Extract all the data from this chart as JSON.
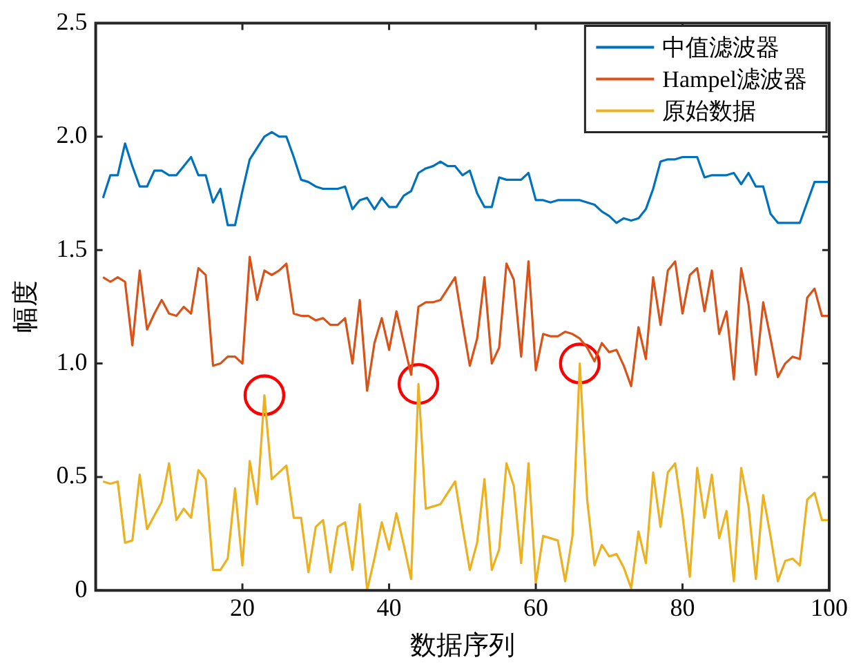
{
  "chart_data": {
    "type": "line",
    "xlabel": "数据序列",
    "ylabel": "幅度",
    "x": [
      1,
      2,
      3,
      4,
      5,
      6,
      7,
      8,
      9,
      10,
      11,
      12,
      13,
      14,
      15,
      16,
      17,
      18,
      19,
      20,
      21,
      22,
      23,
      24,
      25,
      26,
      27,
      28,
      29,
      30,
      31,
      32,
      33,
      34,
      35,
      36,
      37,
      38,
      39,
      40,
      41,
      42,
      43,
      44,
      45,
      46,
      47,
      48,
      49,
      50,
      51,
      52,
      53,
      54,
      55,
      56,
      57,
      58,
      59,
      60,
      61,
      62,
      63,
      64,
      65,
      66,
      67,
      68,
      69,
      70,
      71,
      72,
      73,
      74,
      75,
      76,
      77,
      78,
      79,
      80,
      81,
      82,
      83,
      84,
      85,
      86,
      87,
      88,
      89,
      90,
      91,
      92,
      93,
      94,
      95,
      96,
      97,
      98,
      99,
      100
    ],
    "series": [
      {
        "name": "中值滤波器",
        "color": "#0072bd",
        "values": [
          1.73,
          1.83,
          1.83,
          1.97,
          1.87,
          1.78,
          1.78,
          1.85,
          1.85,
          1.83,
          1.83,
          1.87,
          1.91,
          1.83,
          1.83,
          1.71,
          1.77,
          1.61,
          1.61,
          1.76,
          1.9,
          1.95,
          2.0,
          2.02,
          2.0,
          2.0,
          1.91,
          1.81,
          1.8,
          1.78,
          1.77,
          1.77,
          1.77,
          1.78,
          1.68,
          1.72,
          1.73,
          1.68,
          1.73,
          1.69,
          1.69,
          1.74,
          1.76,
          1.84,
          1.86,
          1.87,
          1.89,
          1.87,
          1.87,
          1.83,
          1.85,
          1.75,
          1.69,
          1.69,
          1.82,
          1.81,
          1.81,
          1.81,
          1.84,
          1.72,
          1.72,
          1.71,
          1.72,
          1.72,
          1.72,
          1.72,
          1.71,
          1.7,
          1.67,
          1.65,
          1.62,
          1.64,
          1.63,
          1.64,
          1.68,
          1.77,
          1.89,
          1.9,
          1.9,
          1.91,
          1.91,
          1.91,
          1.82,
          1.83,
          1.83,
          1.83,
          1.84,
          1.79,
          1.84,
          1.78,
          1.78,
          1.66,
          1.62,
          1.62,
          1.62,
          1.62,
          1.71,
          1.8,
          1.8,
          1.8
        ]
      },
      {
        "name": "Hampel滤波器",
        "color": "#d95319",
        "values": [
          1.38,
          1.36,
          1.38,
          1.36,
          1.08,
          1.41,
          1.15,
          1.22,
          1.28,
          1.22,
          1.21,
          1.25,
          1.22,
          1.42,
          1.39,
          0.99,
          1.0,
          1.03,
          1.03,
          1.0,
          1.47,
          1.28,
          1.41,
          1.39,
          1.41,
          1.44,
          1.22,
          1.21,
          1.21,
          1.19,
          1.2,
          1.17,
          1.17,
          1.2,
          1.0,
          1.28,
          0.88,
          1.09,
          1.2,
          1.06,
          1.23,
          1.09,
          0.95,
          1.25,
          1.27,
          1.27,
          1.28,
          1.33,
          1.38,
          1.18,
          0.99,
          1.11,
          1.38,
          1.0,
          1.07,
          1.44,
          1.37,
          1.03,
          1.45,
          0.97,
          1.13,
          1.12,
          1.12,
          1.14,
          1.13,
          1.11,
          1.07,
          1.01,
          1.09,
          1.05,
          1.06,
          0.99,
          0.9,
          1.16,
          1.02,
          1.38,
          1.17,
          1.41,
          1.45,
          1.22,
          1.39,
          1.42,
          1.23,
          1.41,
          1.13,
          1.23,
          0.93,
          1.42,
          1.26,
          0.95,
          1.27,
          1.11,
          0.94,
          1.0,
          1.03,
          1.02,
          1.29,
          1.33,
          1.21,
          1.21
        ]
      },
      {
        "name": "原始数据",
        "color": "#edb120",
        "values": [
          0.48,
          0.47,
          0.48,
          0.21,
          0.22,
          0.51,
          0.27,
          0.33,
          0.39,
          0.56,
          0.31,
          0.36,
          0.32,
          0.53,
          0.49,
          0.09,
          0.09,
          0.14,
          0.45,
          0.11,
          0.57,
          0.38,
          0.86,
          0.49,
          0.52,
          0.55,
          0.32,
          0.32,
          0.08,
          0.28,
          0.31,
          0.08,
          0.28,
          0.3,
          0.09,
          0.38,
          0.0,
          0.14,
          0.3,
          0.18,
          0.34,
          0.2,
          0.05,
          0.91,
          0.36,
          0.37,
          0.38,
          0.43,
          0.48,
          0.28,
          0.09,
          0.21,
          0.49,
          0.09,
          0.18,
          0.56,
          0.46,
          0.12,
          0.56,
          0.03,
          0.24,
          0.23,
          0.22,
          0.04,
          0.24,
          1.0,
          0.4,
          0.11,
          0.2,
          0.15,
          0.16,
          0.1,
          0.01,
          0.26,
          0.12,
          0.52,
          0.28,
          0.52,
          0.56,
          0.33,
          0.06,
          0.54,
          0.32,
          0.51,
          0.23,
          0.35,
          0.04,
          0.54,
          0.37,
          0.05,
          0.42,
          0.24,
          0.04,
          0.13,
          0.14,
          0.11,
          0.4,
          0.43,
          0.31,
          0.31
        ]
      },
      {
        "type": "scatter",
        "color": "#ff0000",
        "marker": "circle",
        "x": [
          23,
          44,
          66
        ],
        "values": [
          0.86,
          0.91,
          1.0
        ]
      }
    ],
    "xlim": [
      0,
      100
    ],
    "xticks": [
      20,
      40,
      60,
      80,
      100
    ],
    "ylim": [
      0,
      2.5
    ],
    "yticks": [
      0,
      {
        "value": 0.5,
        "label": "0.5"
      },
      {
        "value": 1,
        "label": "1.0"
      },
      {
        "value": 1.5,
        "label": "1.5"
      },
      {
        "value": 2,
        "label": "2.0"
      },
      {
        "value": 2.5,
        "label": "2.5"
      }
    ],
    "legend": "top right",
    "marker": "none",
    "line_style": "solid",
    "grid": false
  }
}
